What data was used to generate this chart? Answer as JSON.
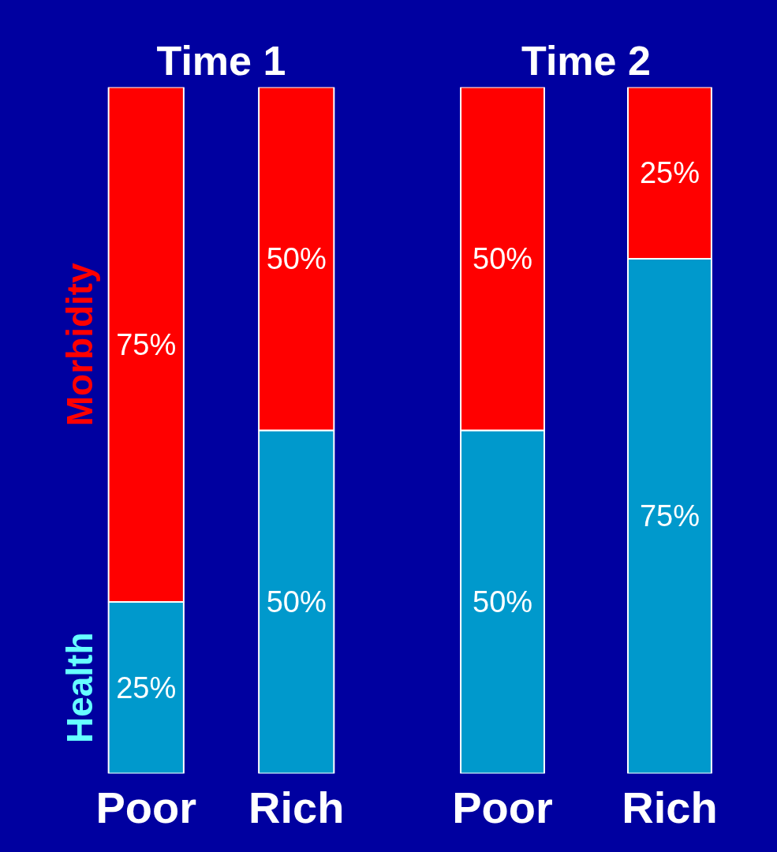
{
  "chart_data": [
    {
      "type": "bar",
      "title": "Time 1",
      "stacked": true,
      "categories": [
        "Poor",
        "Rich"
      ],
      "series": [
        {
          "name": "Health",
          "color": "#0099cc",
          "values": [
            25,
            50
          ],
          "value_labels": [
            "25%",
            "50%"
          ]
        },
        {
          "name": "Morbidity",
          "color": "#ff0000",
          "values": [
            75,
            50
          ],
          "value_labels": [
            "75%",
            "50%"
          ]
        }
      ]
    },
    {
      "type": "bar",
      "title": "Time 2",
      "stacked": true,
      "categories": [
        "Poor",
        "Rich"
      ],
      "series": [
        {
          "color": "#0099cc",
          "values": [
            50,
            75
          ],
          "value_labels": [
            "50%",
            "75%"
          ]
        },
        {
          "color": "#ff0000",
          "values": [
            50,
            25
          ],
          "value_labels": [
            "50%",
            "25%"
          ]
        }
      ]
    }
  ]
}
